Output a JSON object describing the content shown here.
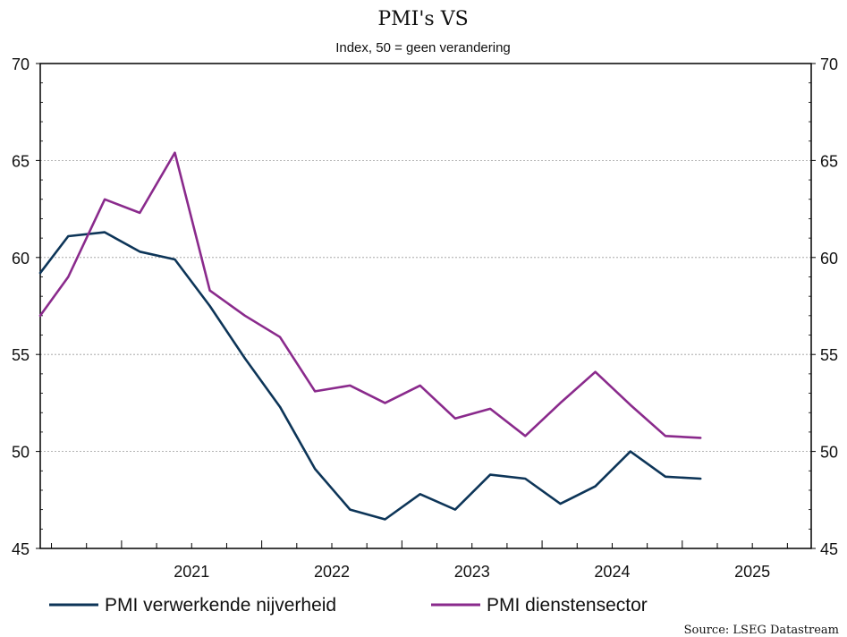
{
  "chart_data": {
    "type": "line",
    "title": "PMI's VS",
    "subtitle": "Index, 50 = geen verandering",
    "source": "Source: LSEG Datastream",
    "ylim": [
      45,
      70
    ],
    "yticks": [
      "45",
      "50",
      "55",
      "60",
      "65",
      "70"
    ],
    "xlim": [
      2020.42,
      2025.92
    ],
    "xticks": [
      {
        "label": "2021",
        "x": 2021.0
      },
      {
        "label": "2022",
        "x": 2022.0
      },
      {
        "label": "2023",
        "x": 2023.0
      },
      {
        "label": "2024",
        "x": 2024.0
      },
      {
        "label": "2025",
        "x": 2025.0
      }
    ],
    "grid": true,
    "series": [
      {
        "name": "PMI verwerkende nijverheid",
        "color": "#0d3558",
        "x": [
          2020.42,
          2020.62,
          2020.88,
          2021.13,
          2021.38,
          2021.63,
          2021.88,
          2022.13,
          2022.38,
          2022.63,
          2022.88,
          2023.13,
          2023.38,
          2023.63,
          2023.88,
          2024.13,
          2024.38,
          2024.63,
          2024.88,
          2025.13
        ],
        "values": [
          59.2,
          61.1,
          61.3,
          60.3,
          59.9,
          57.5,
          54.8,
          52.3,
          49.1,
          47.0,
          46.5,
          47.8,
          47.0,
          48.8,
          48.6,
          47.3,
          48.2,
          50.0,
          48.7,
          48.6
        ]
      },
      {
        "name": "PMI dienstensector",
        "color": "#8a2a8c",
        "x": [
          2020.42,
          2020.62,
          2020.88,
          2021.13,
          2021.38,
          2021.63,
          2021.88,
          2022.13,
          2022.38,
          2022.63,
          2022.88,
          2023.13,
          2023.38,
          2023.63,
          2023.88,
          2024.13,
          2024.38,
          2024.63,
          2024.88,
          2025.13
        ],
        "values": [
          57.0,
          59.0,
          63.0,
          62.3,
          65.4,
          58.3,
          57.0,
          55.9,
          53.1,
          53.4,
          52.5,
          53.4,
          51.7,
          52.2,
          50.8,
          52.5,
          54.1,
          52.4,
          50.8,
          50.7
        ]
      }
    ]
  }
}
